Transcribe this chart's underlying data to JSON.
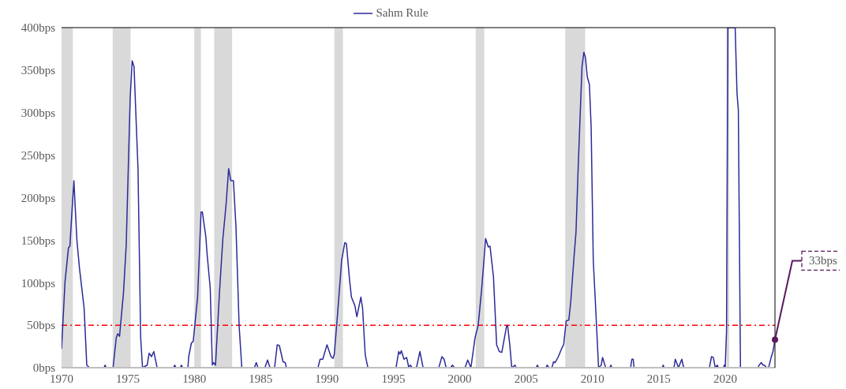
{
  "chart_data": {
    "type": "line",
    "legend": "top",
    "x": [
      1970.0,
      1970.26,
      1970.52,
      1970.63,
      1970.75,
      1970.93,
      1971.15,
      1971.35,
      1971.7,
      1971.9,
      1972.1,
      1973.19,
      1973.28,
      1973.37,
      1973.88,
      1974.12,
      1974.23,
      1974.37,
      1974.67,
      1974.87,
      1975.17,
      1975.32,
      1975.46,
      1975.76,
      1975.96,
      1976.1,
      1976.45,
      1976.6,
      1976.78,
      1976.95,
      1977.2,
      1978.43,
      1978.53,
      1978.62,
      1978.95,
      1979.03,
      1979.12,
      1979.52,
      1979.58,
      1979.78,
      1979.92,
      1980.25,
      1980.51,
      1980.61,
      1980.87,
      1980.97,
      1981.2,
      1981.36,
      1981.44,
      1981.6,
      1981.9,
      1982.15,
      1982.39,
      1982.59,
      1982.75,
      1982.95,
      1983.14,
      1983.38,
      1983.58,
      1984.53,
      1984.67,
      1984.8,
      1985.32,
      1985.52,
      1985.7,
      1986.05,
      1986.25,
      1986.41,
      1986.69,
      1986.85,
      1986.94,
      1989.32,
      1989.48,
      1989.68,
      1990.0,
      1990.3,
      1990.46,
      1990.55,
      1990.8,
      1991.1,
      1991.34,
      1991.46,
      1991.7,
      1991.84,
      1992.1,
      1992.25,
      1992.55,
      1992.68,
      1992.88,
      1993.08,
      1995.2,
      1995.4,
      1995.5,
      1995.6,
      1995.8,
      1996.0,
      1996.15,
      1996.28,
      1996.4,
      1996.74,
      1997.0,
      1997.24,
      1998.42,
      1998.66,
      1998.82,
      1998.98,
      1999.3,
      1999.45,
      1999.6,
      2000.4,
      2000.6,
      2000.84,
      2001.15,
      2001.39,
      2001.65,
      2001.95,
      2002.15,
      2002.28,
      2002.54,
      2002.78,
      2002.98,
      2003.17,
      2003.53,
      2003.61,
      2003.77,
      2003.92,
      2004.16,
      2004.25,
      2005.75,
      2005.85,
      2005.95,
      2006.5,
      2006.58,
      2006.72,
      2006.94,
      2007.07,
      2007.18,
      2007.43,
      2007.69,
      2007.83,
      2008.02,
      2008.22,
      2008.36,
      2008.62,
      2008.76,
      2008.92,
      2009.07,
      2009.21,
      2009.35,
      2009.47,
      2009.61,
      2009.77,
      2009.9,
      2010.06,
      2010.2,
      2010.46,
      2010.66,
      2010.76,
      2010.9,
      2011.0,
      2011.3,
      2011.39,
      2011.45,
      2012.87,
      2012.97,
      2013.07,
      2013.13,
      2015.25,
      2015.33,
      2015.4,
      2016.14,
      2016.24,
      2016.48,
      2016.73,
      2016.87,
      2018.81,
      2018.97,
      2019.11,
      2019.25,
      2019.4,
      2019.5,
      2019.88,
      2019.93,
      2020.0,
      2020.1,
      2020.2,
      2020.75,
      2020.89,
      2020.99,
      2021.15,
      2022.47,
      2022.56,
      2022.72,
      2022.85,
      2022.95,
      2023.13,
      2023.27,
      2023.46,
      2023.6,
      2023.75
    ],
    "series": [
      {
        "name": "Sahm Rule",
        "color": "#2b2b99",
        "line_style": "solid",
        "values": [
          22,
          101,
          141,
          143,
          175,
          220,
          151,
          117,
          70,
          3,
          0,
          0,
          3,
          0,
          0,
          35,
          40,
          37,
          89,
          144,
          317,
          361,
          354,
          234,
          36,
          0,
          3,
          17,
          13,
          19,
          0,
          0,
          3,
          0,
          0,
          3,
          0,
          0,
          13,
          29,
          31,
          83,
          183,
          183,
          154,
          133,
          94,
          3,
          6,
          3,
          89,
          151,
          191,
          234,
          220,
          220,
          166,
          49,
          0,
          0,
          6,
          0,
          0,
          9,
          0,
          0,
          27,
          26,
          7,
          6,
          0,
          0,
          10,
          10,
          27,
          13,
          11,
          16,
          64,
          126,
          147,
          146,
          103,
          83,
          73,
          60,
          83,
          70,
          15,
          0,
          0,
          19,
          16,
          20,
          10,
          12,
          1,
          3,
          0,
          0,
          19,
          0,
          0,
          13,
          10,
          0,
          0,
          3,
          0,
          0,
          9,
          0,
          35,
          50,
          92,
          152,
          142,
          143,
          107,
          27,
          19,
          18,
          49,
          49,
          27,
          0,
          3,
          0,
          0,
          3,
          0,
          0,
          3,
          0,
          0,
          7,
          6,
          13,
          23,
          27,
          55,
          56,
          77,
          132,
          160,
          234,
          296,
          354,
          371,
          365,
          342,
          333,
          283,
          126,
          83,
          0,
          3,
          12,
          5,
          0,
          0,
          3,
          0,
          0,
          10,
          10,
          0,
          0,
          3,
          0,
          0,
          10,
          0,
          10,
          0,
          0,
          13,
          12,
          0,
          3,
          0,
          0,
          3,
          0,
          43,
          400,
          400,
          323,
          303,
          0,
          0,
          3,
          6,
          3,
          3,
          0,
          0,
          12,
          19,
          33
        ]
      }
    ],
    "xlim": [
      1970,
      2023.75
    ],
    "xticks": [
      1970,
      1975,
      1980,
      1985,
      1990,
      1995,
      2000,
      2005,
      2010,
      2015,
      2020
    ],
    "ylim": [
      0,
      400
    ],
    "yticks": [
      {
        "value": 0,
        "label": "0bps"
      },
      {
        "value": 50,
        "label": "50bps"
      },
      {
        "value": 100,
        "label": "100bps"
      },
      {
        "value": 150,
        "label": "150bps"
      },
      {
        "value": 200,
        "label": "200bps"
      },
      {
        "value": 250,
        "label": "250bps"
      },
      {
        "value": 300,
        "label": "300bps"
      },
      {
        "value": 350,
        "label": "350bps"
      },
      {
        "value": 400,
        "label": "400bps"
      }
    ],
    "grid": false,
    "ref_lines": [
      {
        "axis": "y",
        "value": 50,
        "color": "#ff0000",
        "line_style": "dashdot"
      }
    ],
    "bands": [
      {
        "axis": "x",
        "from": 1970.0,
        "to": 1970.85,
        "color": "#d9d9d9"
      },
      {
        "axis": "x",
        "from": 1973.85,
        "to": 1975.2,
        "color": "#d9d9d9"
      },
      {
        "axis": "x",
        "from": 1980.0,
        "to": 1980.5,
        "color": "#d9d9d9"
      },
      {
        "axis": "x",
        "from": 1981.5,
        "to": 1982.85,
        "color": "#d9d9d9"
      },
      {
        "axis": "x",
        "from": 1990.55,
        "to": 1991.2,
        "color": "#d9d9d9"
      },
      {
        "axis": "x",
        "from": 2001.2,
        "to": 2001.85,
        "color": "#d9d9d9"
      },
      {
        "axis": "x",
        "from": 2007.95,
        "to": 2009.45,
        "color": "#d9d9d9"
      },
      {
        "axis": "x",
        "from": 2020.1,
        "to": 2020.3,
        "color": "#d9d9d9"
      }
    ],
    "annotations": [
      {
        "text": "33bps",
        "x": 2023.75,
        "y": 33
      }
    ]
  }
}
